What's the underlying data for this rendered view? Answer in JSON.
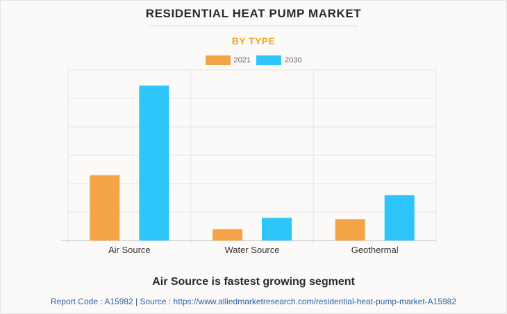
{
  "header": {
    "title": "RESIDENTIAL HEAT PUMP MARKET",
    "subtitle": "BY TYPE"
  },
  "chart_data": {
    "type": "bar",
    "categories": [
      "Air Source",
      "Water Source",
      "Geothermal"
    ],
    "series": [
      {
        "name": "2021",
        "color": "#f5a445",
        "values": [
          23,
          4,
          7.5
        ]
      },
      {
        "name": "2030",
        "color": "#2ec5fb",
        "values": [
          54.5,
          8,
          16
        ]
      }
    ],
    "ylim": [
      0,
      60
    ],
    "grid": true,
    "legend": "top-center"
  },
  "footer": {
    "takeaway": "Air Source is fastest growing segment",
    "report_line": "Report Code : A15982  |  Source : https://www.alliedmarketresearch.com/residential-heat-pump-market-A15982"
  }
}
